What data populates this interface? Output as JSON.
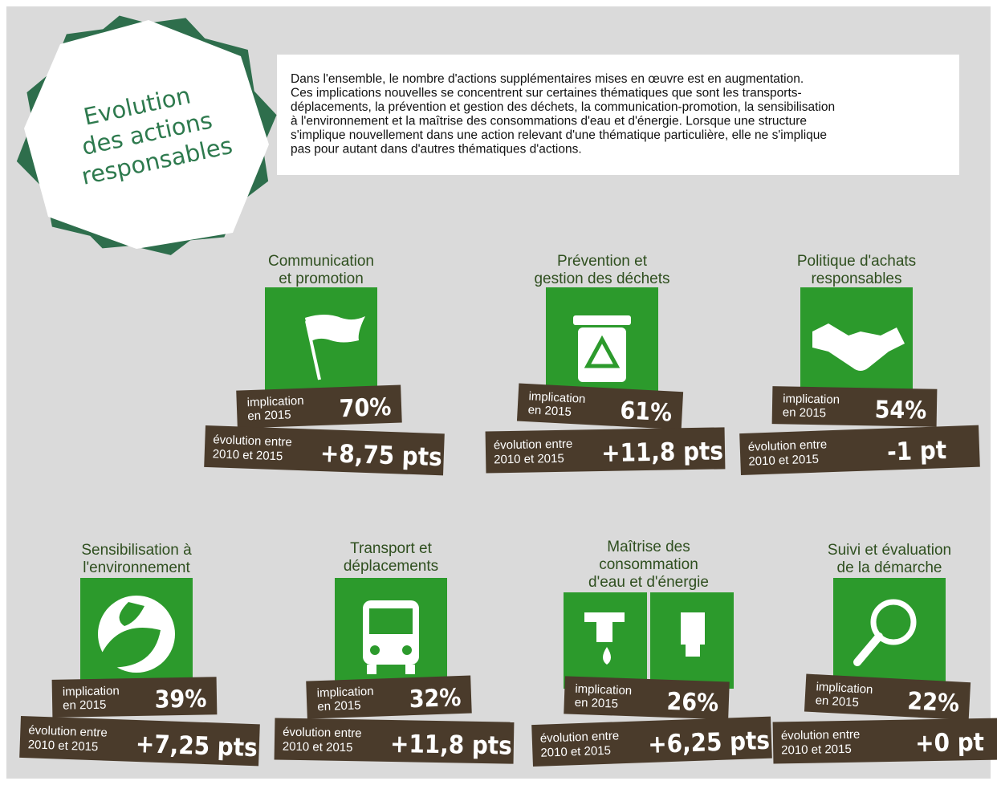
{
  "title": [
    "Evolution",
    "des actions",
    "responsables"
  ],
  "intro": [
    "Dans l'ensemble, le nombre d'actions supplémentaires mises en œuvre est en augmentation.",
    "Ces implications nouvelles se concentrent sur certaines thématiques que sont les transports-",
    "déplacements, la prévention et gestion des déchets, la communication-promotion, la sensibilisation",
    "à l'environnement et la maîtrise des consommations d'eau et d'énergie. Lorsque une structure",
    "s'implique nouvellement dans une action relevant d'une thématique particulière, elle ne s'implique",
    "pas pour autant dans d'autres thématiques d'actions."
  ],
  "items": [
    {
      "title": [
        "Communication",
        "et promotion"
      ],
      "implication_label": [
        "implication",
        "en 2015"
      ],
      "implication": "70%",
      "evolution_label": [
        "évolution entre",
        "2010 et 2015"
      ],
      "evolution": "+8,75 pts"
    },
    {
      "title": [
        "Prévention et",
        "gestion des déchets"
      ],
      "implication_label": [
        "implication",
        "en 2015"
      ],
      "implication": "61%",
      "evolution_label": [
        "évolution entre",
        "2010 et 2015"
      ],
      "evolution": "+11,8 pts"
    },
    {
      "title": [
        "Politique d'achats",
        "responsables"
      ],
      "implication_label": [
        "implication",
        "en 2015"
      ],
      "implication": "54%",
      "evolution_label": [
        "évolution entre",
        "2010 et 2015"
      ],
      "evolution": "-1 pt"
    },
    {
      "title": [
        "Sensibilisation à",
        "l'environnement"
      ],
      "implication_label": [
        "implication",
        "en 2015"
      ],
      "implication": "39%",
      "evolution_label": [
        "évolution entre",
        "2010 et 2015"
      ],
      "evolution": "+7,25 pts"
    },
    {
      "title": [
        "Transport et",
        "déplacements"
      ],
      "implication_label": [
        "implication",
        "en 2015"
      ],
      "implication": "32%",
      "evolution_label": [
        "évolution entre",
        "2010 et 2015"
      ],
      "evolution": "+11,8 pts"
    },
    {
      "title": [
        "Maîtrise des",
        "consommation",
        "d'eau et d'énergie"
      ],
      "implication_label": [
        "implication",
        "en 2015"
      ],
      "implication": "26%",
      "evolution_label": [
        "évolution entre",
        "2010 et 2015"
      ],
      "evolution": "+6,25 pts"
    },
    {
      "title": [
        "Suivi et évaluation",
        "de la démarche"
      ],
      "implication_label": [
        "implication",
        "en 2015"
      ],
      "implication": "22%",
      "evolution_label": [
        "évolution entre",
        "2010 et 2015"
      ],
      "evolution": "+0 pt"
    }
  ]
}
